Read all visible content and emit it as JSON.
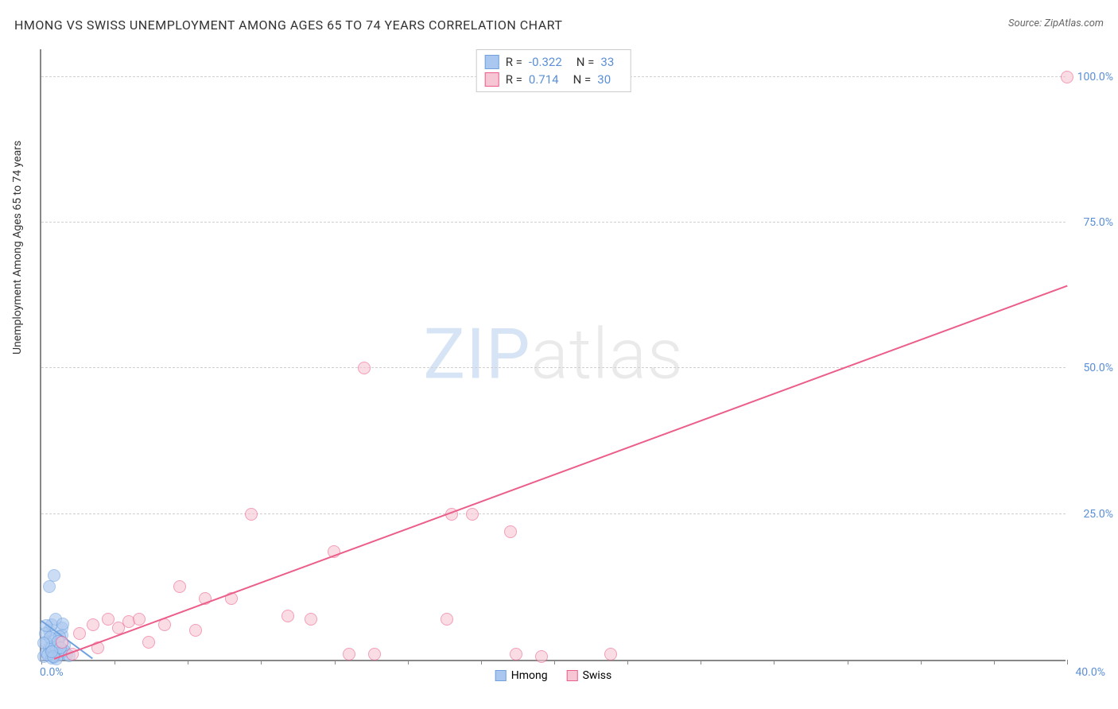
{
  "title": "HMONG VS SWISS UNEMPLOYMENT AMONG AGES 65 TO 74 YEARS CORRELATION CHART",
  "source_label": "Source: ZipAtlas.com",
  "y_axis_title": "Unemployment Among Ages 65 to 74 years",
  "watermark": {
    "part1": "ZIP",
    "part2": "atlas"
  },
  "chart": {
    "type": "scatter",
    "background_color": "#ffffff",
    "grid_color": "#d0d0d0",
    "axis_color": "#888888",
    "label_color": "#5b8fd6",
    "title_color": "#333333",
    "xlim": [
      0,
      40
    ],
    "ylim": [
      0,
      105
    ],
    "x_tick_positions": [
      0,
      2.86,
      5.71,
      8.57,
      11.43,
      14.29,
      17.14,
      20,
      22.86,
      25.71,
      28.57,
      31.43,
      34.29,
      37.14,
      40
    ],
    "x_tick_labels": {
      "0": "0.0%",
      "40": "40.0%"
    },
    "y_ticks": [
      25,
      50,
      75,
      100
    ],
    "y_tick_labels": [
      "25.0%",
      "50.0%",
      "75.0%",
      "100.0%"
    ],
    "point_radius": 8,
    "point_opacity": 0.6
  },
  "series": [
    {
      "name": "Hmong",
      "fill_color": "#a9c7ef",
      "stroke_color": "#6fa1df",
      "r_value": "-0.322",
      "n_value": "33",
      "trend": {
        "x1": 0,
        "y1": 6.5,
        "x2": 2.0,
        "y2": 0,
        "color": "#6fa1df"
      },
      "points": [
        [
          0.1,
          0.5
        ],
        [
          0.2,
          1.2
        ],
        [
          0.3,
          2.0
        ],
        [
          0.4,
          0.3
        ],
        [
          0.5,
          3.5
        ],
        [
          0.6,
          1.8
        ],
        [
          0.7,
          0.9
        ],
        [
          0.8,
          4.2
        ],
        [
          0.9,
          2.5
        ],
        [
          1.0,
          1.0
        ],
        [
          0.3,
          5.0
        ],
        [
          0.5,
          0.4
        ],
        [
          0.2,
          3.0
        ],
        [
          0.4,
          6.0
        ],
        [
          0.6,
          0.2
        ],
        [
          0.15,
          4.5
        ],
        [
          0.8,
          5.5
        ],
        [
          0.25,
          0.8
        ],
        [
          0.5,
          14.5
        ],
        [
          0.3,
          12.5
        ],
        [
          0.7,
          4.0
        ],
        [
          0.4,
          2.2
        ],
        [
          0.55,
          7.0
        ],
        [
          0.35,
          3.8
        ],
        [
          0.9,
          1.5
        ],
        [
          0.1,
          2.8
        ],
        [
          0.45,
          0.6
        ],
        [
          0.65,
          3.2
        ],
        [
          0.2,
          5.8
        ],
        [
          0.75,
          2.0
        ],
        [
          1.1,
          0.7
        ],
        [
          0.85,
          6.2
        ],
        [
          0.4,
          1.4
        ]
      ]
    },
    {
      "name": "Swiss",
      "fill_color": "#f7c6d4",
      "stroke_color": "#ec5e8a",
      "r_value": "0.714",
      "n_value": "30",
      "trend": {
        "x1": 0.5,
        "y1": 0,
        "x2": 40,
        "y2": 64,
        "color": "#ec5e8a"
      },
      "points": [
        [
          1.2,
          1.0
        ],
        [
          1.5,
          4.5
        ],
        [
          2.0,
          6.0
        ],
        [
          2.2,
          2.0
        ],
        [
          2.6,
          7.0
        ],
        [
          3.0,
          5.5
        ],
        [
          3.4,
          6.5
        ],
        [
          3.8,
          7.0
        ],
        [
          4.2,
          3.0
        ],
        [
          4.8,
          6.0
        ],
        [
          5.4,
          12.5
        ],
        [
          6.0,
          5.0
        ],
        [
          6.4,
          10.5
        ],
        [
          7.4,
          10.5
        ],
        [
          8.2,
          25.0
        ],
        [
          9.6,
          7.5
        ],
        [
          10.5,
          7.0
        ],
        [
          11.4,
          18.5
        ],
        [
          12.0,
          1.0
        ],
        [
          12.6,
          50.0
        ],
        [
          13.0,
          1.0
        ],
        [
          15.8,
          7.0
        ],
        [
          16.0,
          25.0
        ],
        [
          16.8,
          25.0
        ],
        [
          18.3,
          22.0
        ],
        [
          18.5,
          1.0
        ],
        [
          19.5,
          0.5
        ],
        [
          22.2,
          1.0
        ],
        [
          40.0,
          100.0
        ],
        [
          0.8,
          3.0
        ]
      ]
    }
  ],
  "legend_bottom": [
    {
      "label": "Hmong",
      "fill": "#a9c7ef",
      "stroke": "#6fa1df"
    },
    {
      "label": "Swiss",
      "fill": "#f7c6d4",
      "stroke": "#ec5e8a"
    }
  ]
}
